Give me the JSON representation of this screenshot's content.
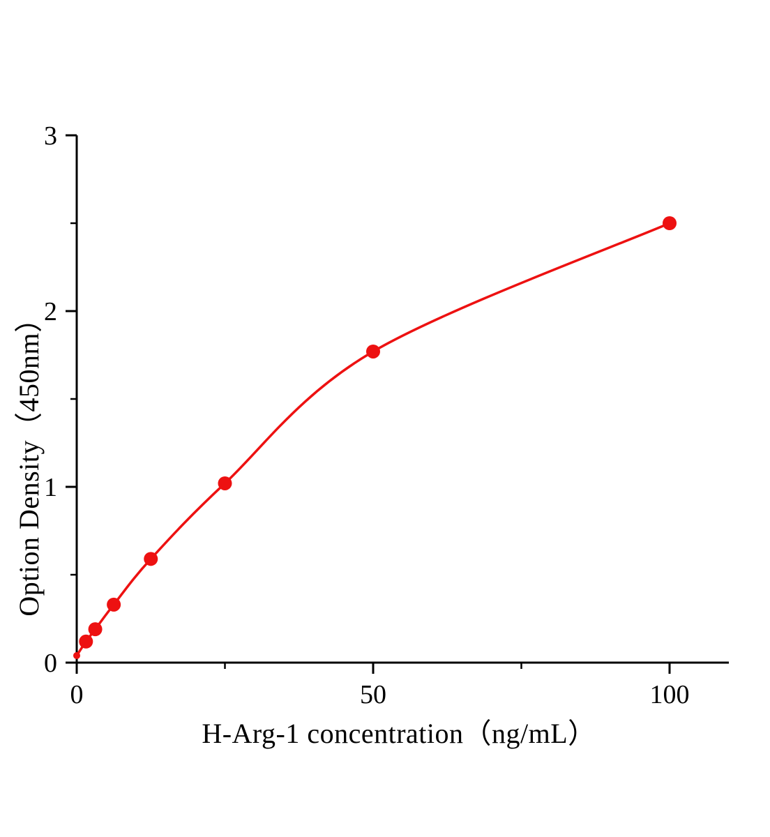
{
  "chart_data": {
    "type": "scatter",
    "title": "",
    "xlabel": "H-Arg-1 concentration（ng/mL）",
    "ylabel": "Option Density（450nm）",
    "x": [
      0,
      1.563,
      3.125,
      6.25,
      12.5,
      25,
      50,
      100
    ],
    "y": [
      0.04,
      0.12,
      0.19,
      0.33,
      0.59,
      1.02,
      1.77,
      2.5
    ],
    "fit_line": true,
    "xlim": [
      0,
      110
    ],
    "ylim": [
      0,
      3
    ],
    "x_major_ticks": [
      0,
      50,
      100
    ],
    "x_minor_ticks": [
      25,
      75
    ],
    "y_major_ticks": [
      0,
      1,
      2,
      3
    ],
    "y_minor_ticks": [
      0.5,
      1.5,
      2.5
    ],
    "grid": false,
    "legend": null,
    "colors": {
      "curve": "#ed1111",
      "marker": "#ed1111",
      "axis": "#000000",
      "tick_label": "#000000"
    }
  }
}
